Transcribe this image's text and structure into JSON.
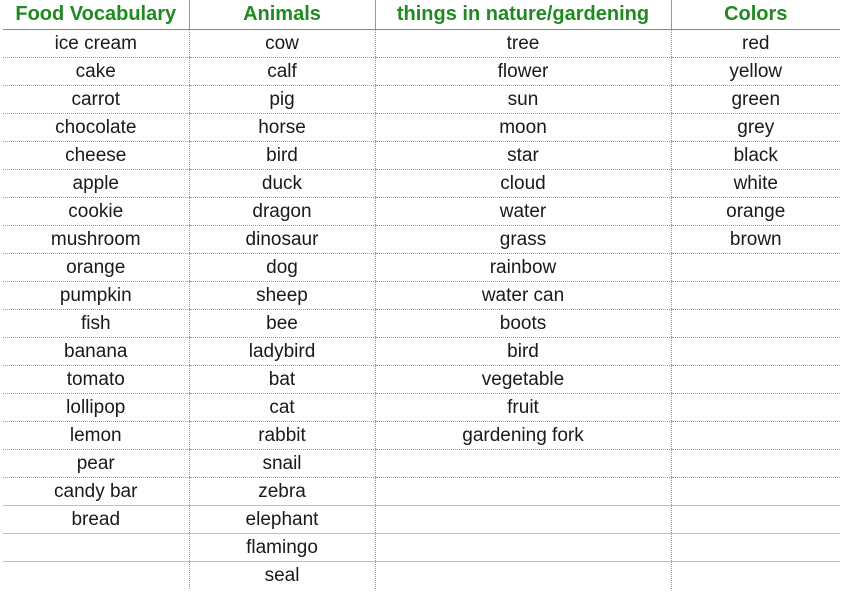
{
  "headers": [
    "Food Vocabulary",
    "Animals",
    "things in nature/gardening",
    "Colors"
  ],
  "rows": [
    [
      "ice cream",
      "cow",
      "tree",
      "red"
    ],
    [
      "cake",
      "calf",
      "flower",
      "yellow"
    ],
    [
      "carrot",
      "pig",
      "sun",
      "green"
    ],
    [
      "chocolate",
      "horse",
      "moon",
      "grey"
    ],
    [
      "cheese",
      "bird",
      "star",
      "black"
    ],
    [
      "apple",
      "duck",
      "cloud",
      "white"
    ],
    [
      "cookie",
      "dragon",
      "water",
      "orange"
    ],
    [
      "mushroom",
      "dinosaur",
      "grass",
      "brown"
    ],
    [
      "orange",
      "dog",
      "rainbow",
      ""
    ],
    [
      "pumpkin",
      "sheep",
      "water can",
      ""
    ],
    [
      "fish",
      "bee",
      "boots",
      ""
    ],
    [
      "banana",
      "ladybird",
      "bird",
      ""
    ],
    [
      "tomato",
      "bat",
      "vegetable",
      ""
    ],
    [
      "lollipop",
      "cat",
      "fruit",
      ""
    ],
    [
      "lemon",
      "rabbit",
      "gardening fork",
      ""
    ],
    [
      "pear",
      "snail",
      "",
      ""
    ],
    [
      "candy bar",
      "zebra",
      "",
      ""
    ],
    [
      "bread",
      "elephant",
      "",
      ""
    ],
    [
      "",
      "flamingo",
      "",
      ""
    ],
    [
      "",
      "seal",
      "",
      ""
    ]
  ],
  "colors": {
    "header_text": "#1f8a1f",
    "cell_text": "#1a1a1a",
    "gridline": "#9a9a9a",
    "highlight_rule": "#f2c230"
  }
}
